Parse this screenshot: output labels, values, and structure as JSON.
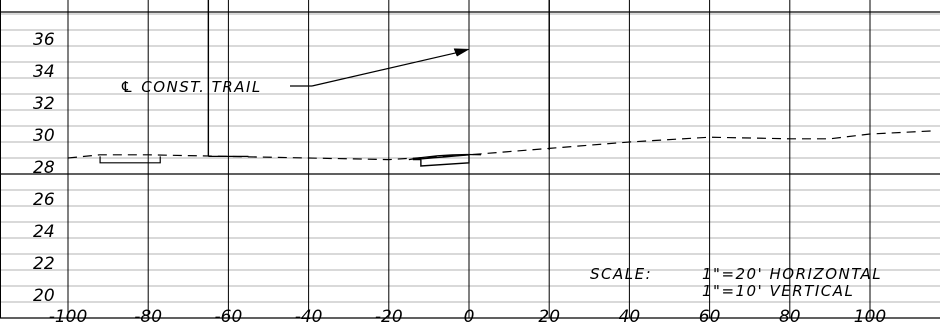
{
  "chart_data": {
    "type": "line",
    "title": "",
    "xlabel": "",
    "ylabel": "",
    "x_ticks": [
      "-100",
      "-80",
      "-60",
      "-40",
      "-20",
      "0",
      "20",
      "40",
      "60",
      "80",
      "100"
    ],
    "y_ticks": [
      "20",
      "22",
      "24",
      "26",
      "28",
      "30",
      "32",
      "34",
      "36"
    ],
    "xlim": [
      -100,
      116
    ],
    "ylim": [
      19,
      39
    ],
    "grid": true,
    "series": [
      {
        "style": "dashed",
        "x": [
          -100,
          -92,
          -80,
          -60,
          -40,
          -20,
          0,
          20,
          40,
          60,
          80,
          90,
          100,
          116
        ],
        "y": [
          29.0,
          29.2,
          29.2,
          29.1,
          29.0,
          28.9,
          29.2,
          29.6,
          30.0,
          30.3,
          30.2,
          30.2,
          30.5,
          30.7
        ]
      }
    ],
    "vertical_lines": [
      {
        "x": -65,
        "y_from": 29.1
      },
      {
        "x": 20,
        "y_from": 29.5
      }
    ],
    "annotations": [
      {
        "text": "℄ CONST. TRAIL",
        "arrow_to": {
          "x": 0,
          "y": 35.8
        }
      },
      {
        "text": "SCALE:"
      },
      {
        "text": "1\"=20' HORIZONTAL"
      },
      {
        "text": "1\"=10' VERTICAL"
      }
    ]
  }
}
